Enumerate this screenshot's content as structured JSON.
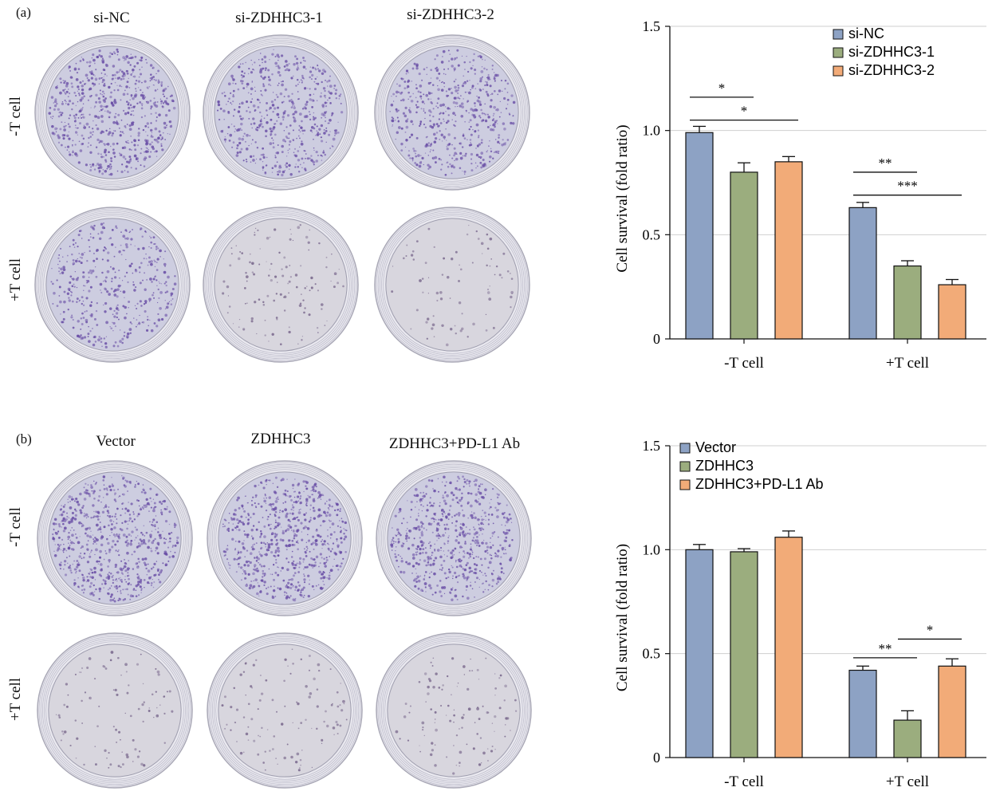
{
  "panels": [
    {
      "label": "(a)",
      "columns": [
        "si-NC",
        "si-ZDHHC3-1",
        "si-ZDHHC3-2"
      ],
      "rows": [
        "-T cell",
        "+T cell"
      ],
      "dish_stain": [
        [
          0.9,
          0.72,
          0.72
        ],
        [
          0.55,
          0.12,
          0.06
        ]
      ]
    },
    {
      "label": "(b)",
      "columns": [
        "Vector",
        "ZDHHC3",
        "ZDHHC3+PD-L1 Ab"
      ],
      "rows": [
        "-T cell",
        "+T cell"
      ],
      "dish_stain": [
        [
          0.95,
          0.95,
          0.85
        ],
        [
          0.08,
          0.1,
          0.1
        ]
      ]
    }
  ],
  "chart_data": [
    {
      "type": "bar",
      "categories": [
        "-T cell",
        "+T cell"
      ],
      "series": [
        {
          "name": "si-NC",
          "color": "#8da2c4",
          "values": [
            0.99,
            0.63
          ],
          "errors": [
            0.03,
            0.025
          ]
        },
        {
          "name": "si-ZDHHC3-1",
          "color": "#9bad7e",
          "values": [
            0.8,
            0.35
          ],
          "errors": [
            0.045,
            0.025
          ]
        },
        {
          "name": "si-ZDHHC3-2",
          "color": "#f2ab78",
          "values": [
            0.85,
            0.26
          ],
          "errors": [
            0.025,
            0.025
          ]
        }
      ],
      "ylabel": "Cell survival (fold ratio)",
      "ylim": [
        0,
        1.5
      ],
      "yticks": [
        0,
        0.5,
        1.0,
        1.5
      ],
      "ytick_labels": [
        "0",
        "0.5",
        "1.0",
        "1.5"
      ],
      "grid": true,
      "legend": "top-right",
      "significance": [
        {
          "group": 0,
          "from": 0,
          "to": 1,
          "level": 1.16,
          "label": "*"
        },
        {
          "group": 0,
          "from": 0,
          "to": 2,
          "level": 1.05,
          "label": "*"
        },
        {
          "group": 1,
          "from": 0,
          "to": 1,
          "level": 0.8,
          "label": "**"
        },
        {
          "group": 1,
          "from": 0,
          "to": 2,
          "level": 0.69,
          "label": "***"
        }
      ]
    },
    {
      "type": "bar",
      "categories": [
        "-T cell",
        "+T cell"
      ],
      "series": [
        {
          "name": "Vector",
          "color": "#8da2c4",
          "values": [
            1.0,
            0.42
          ],
          "errors": [
            0.025,
            0.02
          ]
        },
        {
          "name": "ZDHHC3",
          "color": "#9bad7e",
          "values": [
            0.99,
            0.18
          ],
          "errors": [
            0.015,
            0.045
          ]
        },
        {
          "name": "ZDHHC3+PD-L1 Ab",
          "color": "#f2ab78",
          "values": [
            1.06,
            0.44
          ],
          "errors": [
            0.03,
            0.035
          ]
        }
      ],
      "ylabel": "Cell survival (fold ratio)",
      "ylim": [
        0,
        1.5
      ],
      "yticks": [
        0,
        0.5,
        1.0,
        1.5
      ],
      "ytick_labels": [
        "0",
        "0.5",
        "1.0",
        "1.5"
      ],
      "grid": true,
      "legend": "top-left",
      "significance": [
        {
          "group": 1,
          "from": 0,
          "to": 1,
          "level": 0.48,
          "label": "**"
        },
        {
          "group": 1,
          "from": 1,
          "to": 2,
          "level": 0.57,
          "label": "*"
        }
      ]
    }
  ]
}
